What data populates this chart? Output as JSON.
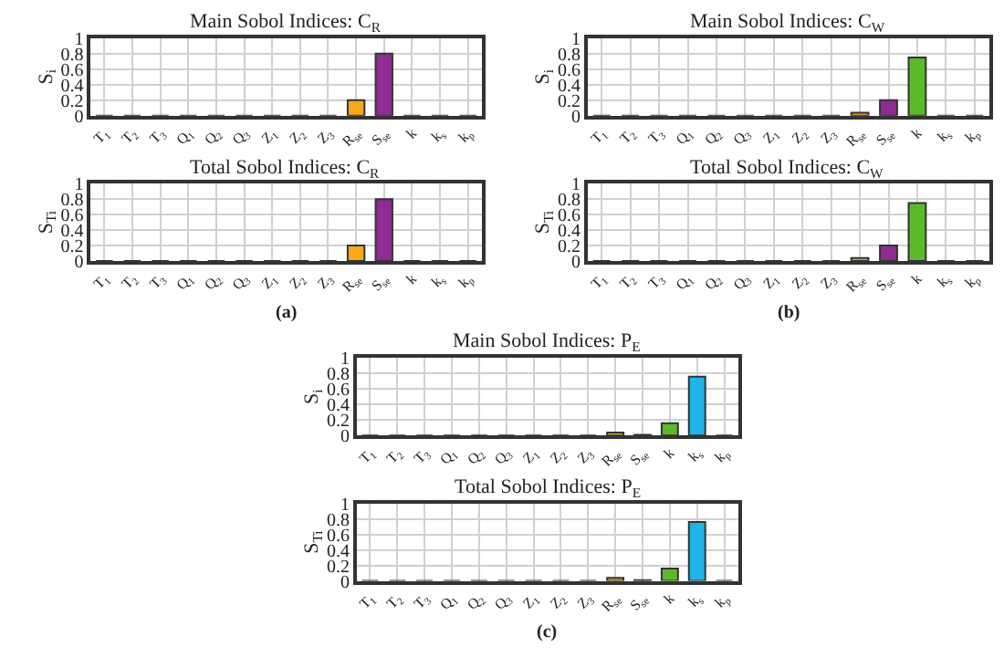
{
  "chart_data": [
    {
      "type": "bar",
      "title": "Main Sobol Indices: C$_{R}$",
      "ylabel": "S$_{i}$",
      "categories": [
        "T$_{1}$",
        "T$_{2}$",
        "T$_{3}$",
        "Q$_{1}$",
        "Q$_{2}$",
        "Q$_{3}$",
        "Z$_{1}$",
        "Z$_{2}$",
        "Z$_{3}$",
        "R$_{se}$",
        "S$_{se}$",
        "k",
        "k$_{s}$",
        "k$_{p}$"
      ],
      "values": [
        0,
        0,
        0,
        0,
        0,
        0,
        0,
        0,
        0,
        0.2,
        0.8,
        0,
        0,
        0
      ],
      "colors": [
        "#333333",
        "#333333",
        "#333333",
        "#333333",
        "#333333",
        "#333333",
        "#333333",
        "#333333",
        "#333333",
        "#f7a81b",
        "#8e2c91",
        "#333333",
        "#333333",
        "#333333"
      ],
      "ylim": [
        0,
        1
      ],
      "yticks": [
        0,
        0.2,
        0.4,
        0.6,
        0.8,
        1
      ],
      "grid": true
    },
    {
      "type": "bar",
      "title": "Total Sobol Indices: C$_{R}$",
      "ylabel": "S$_{Ti}$",
      "categories": [
        "T$_{1}$",
        "T$_{2}$",
        "T$_{3}$",
        "Q$_{1}$",
        "Q$_{2}$",
        "Q$_{3}$",
        "Z$_{1}$",
        "Z$_{2}$",
        "Z$_{3}$",
        "R$_{se}$",
        "S$_{se}$",
        "k",
        "k$_{s}$",
        "k$_{p}$"
      ],
      "values": [
        0,
        0,
        0,
        0,
        0,
        0,
        0,
        0,
        0,
        0.2,
        0.8,
        0,
        0,
        0
      ],
      "colors": [
        "#333333",
        "#333333",
        "#333333",
        "#333333",
        "#333333",
        "#333333",
        "#333333",
        "#333333",
        "#333333",
        "#f7a81b",
        "#8e2c91",
        "#333333",
        "#333333",
        "#333333"
      ],
      "ylim": [
        0,
        1
      ],
      "yticks": [
        0,
        0.2,
        0.4,
        0.6,
        0.8,
        1
      ],
      "grid": true,
      "annotations": [
        "(a)"
      ]
    },
    {
      "type": "bar",
      "title": "Main Sobol Indices: C$_{W}$",
      "ylabel": "S$_{i}$",
      "categories": [
        "T$_{1}$",
        "T$_{2}$",
        "T$_{3}$",
        "Q$_{1}$",
        "Q$_{2}$",
        "Q$_{3}$",
        "Z$_{1}$",
        "Z$_{2}$",
        "Z$_{3}$",
        "R$_{se}$",
        "S$_{se}$",
        "k",
        "k$_{s}$",
        "k$_{p}$"
      ],
      "values": [
        0,
        0,
        0,
        0,
        0,
        0,
        0,
        0,
        0,
        0.04,
        0.2,
        0.75,
        0,
        0
      ],
      "colors": [
        "#333333",
        "#333333",
        "#333333",
        "#333333",
        "#333333",
        "#333333",
        "#333333",
        "#333333",
        "#333333",
        "#f7a81b",
        "#8e2c91",
        "#5db82c",
        "#333333",
        "#333333"
      ],
      "ylim": [
        0,
        1
      ],
      "yticks": [
        0,
        0.2,
        0.4,
        0.6,
        0.8,
        1
      ],
      "grid": true
    },
    {
      "type": "bar",
      "title": "Total Sobol Indices: C$_{W}$",
      "ylabel": "S$_{Ti}$",
      "categories": [
        "T$_{1}$",
        "T$_{2}$",
        "T$_{3}$",
        "Q$_{1}$",
        "Q$_{2}$",
        "Q$_{3}$",
        "Z$_{1}$",
        "Z$_{2}$",
        "Z$_{3}$",
        "R$_{se}$",
        "S$_{se}$",
        "k",
        "k$_{s}$",
        "k$_{p}$"
      ],
      "values": [
        0,
        0,
        0,
        0,
        0,
        0,
        0,
        0,
        0,
        0.04,
        0.2,
        0.75,
        0,
        0
      ],
      "colors": [
        "#333333",
        "#333333",
        "#333333",
        "#333333",
        "#333333",
        "#333333",
        "#333333",
        "#333333",
        "#333333",
        "#f7a81b",
        "#8e2c91",
        "#5db82c",
        "#333333",
        "#333333"
      ],
      "ylim": [
        0,
        1
      ],
      "yticks": [
        0,
        0.2,
        0.4,
        0.6,
        0.8,
        1
      ],
      "grid": true,
      "annotations": [
        "(b)"
      ]
    },
    {
      "type": "bar",
      "title": "Main Sobol Indices: P$_{E}$",
      "ylabel": "S$_{i}$",
      "categories": [
        "T$_{1}$",
        "T$_{2}$",
        "T$_{3}$",
        "Q$_{1}$",
        "Q$_{2}$",
        "Q$_{3}$",
        "Z$_{1}$",
        "Z$_{2}$",
        "Z$_{3}$",
        "R$_{se}$",
        "S$_{se}$",
        "k",
        "k$_{s}$",
        "k$_{p}$"
      ],
      "values": [
        0,
        0,
        0,
        0,
        0,
        0,
        0,
        0,
        0,
        0.04,
        0.01,
        0.16,
        0.76,
        0
      ],
      "colors": [
        "#333333",
        "#333333",
        "#333333",
        "#333333",
        "#333333",
        "#333333",
        "#333333",
        "#333333",
        "#333333",
        "#f7a81b",
        "#8e2c91",
        "#5db82c",
        "#1fb4ea",
        "#333333"
      ],
      "ylim": [
        0,
        1
      ],
      "yticks": [
        0,
        0.2,
        0.4,
        0.6,
        0.8,
        1
      ],
      "grid": true
    },
    {
      "type": "bar",
      "title": "Total Sobol Indices: P$_{E}$",
      "ylabel": "S$_{Ti}$",
      "categories": [
        "T$_{1}$",
        "T$_{2}$",
        "T$_{3}$",
        "Q$_{1}$",
        "Q$_{2}$",
        "Q$_{3}$",
        "Z$_{1}$",
        "Z$_{2}$",
        "Z$_{3}$",
        "R$_{se}$",
        "S$_{se}$",
        "k",
        "k$_{s}$",
        "k$_{p}$"
      ],
      "values": [
        0,
        0,
        0,
        0,
        0,
        0,
        0,
        0,
        0,
        0.04,
        0.01,
        0.16,
        0.76,
        0
      ],
      "colors": [
        "#333333",
        "#333333",
        "#333333",
        "#333333",
        "#333333",
        "#333333",
        "#333333",
        "#333333",
        "#333333",
        "#f7a81b",
        "#8e2c91",
        "#5db82c",
        "#1fb4ea",
        "#333333"
      ],
      "ylim": [
        0,
        1
      ],
      "yticks": [
        0,
        0.2,
        0.4,
        0.6,
        0.8,
        1
      ],
      "grid": true,
      "annotations": [
        "(c)"
      ]
    }
  ]
}
